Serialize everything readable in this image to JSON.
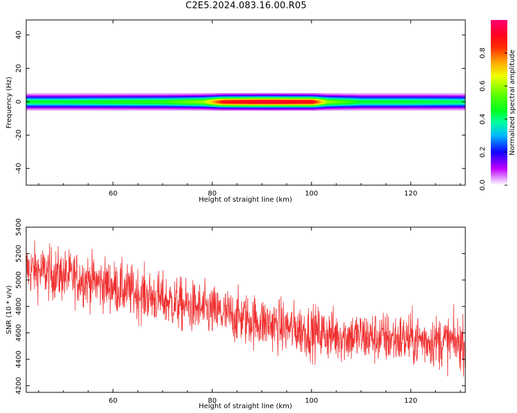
{
  "figure": {
    "title": "C2E5.2024.083.16.00.R05"
  },
  "chart_data": [
    {
      "type": "heatmap",
      "xlabel": "Height of straight line (km)",
      "ylabel": "Frequency (Hz)",
      "xlim": [
        42.5,
        131
      ],
      "ylim": [
        -50,
        49
      ],
      "xticks": [
        60,
        80,
        100,
        120
      ],
      "yticks": [
        -40,
        -20,
        0,
        20,
        40
      ],
      "colorbar": {
        "label": "Normalized spectral amplitude",
        "ticks": [
          0.0,
          0.2,
          0.4,
          0.6,
          0.8
        ],
        "tick_labels": [
          "0.0",
          "0.2",
          "0.4",
          "0.6",
          "0.8"
        ],
        "range": [
          0,
          1
        ],
        "colormap": "gist_rainbow_r"
      },
      "band": {
        "center_hz": 0,
        "half_width_hz": 5,
        "peak_amplitude_by_height": [
          {
            "x": 43,
            "amp": 0.45
          },
          {
            "x": 50,
            "amp": 0.45
          },
          {
            "x": 60,
            "amp": 0.48
          },
          {
            "x": 70,
            "amp": 0.5
          },
          {
            "x": 78,
            "amp": 0.6
          },
          {
            "x": 82,
            "amp": 0.9
          },
          {
            "x": 90,
            "amp": 0.95
          },
          {
            "x": 100,
            "amp": 0.92
          },
          {
            "x": 103,
            "amp": 0.6
          },
          {
            "x": 110,
            "amp": 0.45
          },
          {
            "x": 120,
            "amp": 0.45
          },
          {
            "x": 131,
            "amp": 0.42
          }
        ]
      }
    },
    {
      "type": "line",
      "xlabel": "Height of straight line (km)",
      "ylabel": "SNR (10 * v/v)",
      "xlim": [
        42.5,
        131
      ],
      "ylim": [
        4150,
        5400
      ],
      "xticks": [
        60,
        80,
        100,
        120
      ],
      "yticks": [
        4200,
        4400,
        4600,
        4800,
        5000,
        5200,
        5400
      ],
      "series": [
        {
          "color": "#f03030",
          "trend": [
            {
              "x": 43,
              "y": 5080
            },
            {
              "x": 55,
              "y": 5000
            },
            {
              "x": 65,
              "y": 4900
            },
            {
              "x": 75,
              "y": 4800
            },
            {
              "x": 85,
              "y": 4720
            },
            {
              "x": 95,
              "y": 4640
            },
            {
              "x": 105,
              "y": 4580
            },
            {
              "x": 115,
              "y": 4560
            },
            {
              "x": 125,
              "y": 4540
            },
            {
              "x": 131,
              "y": 4520
            }
          ],
          "noise_spread": 180,
          "points": 1500
        }
      ]
    }
  ]
}
